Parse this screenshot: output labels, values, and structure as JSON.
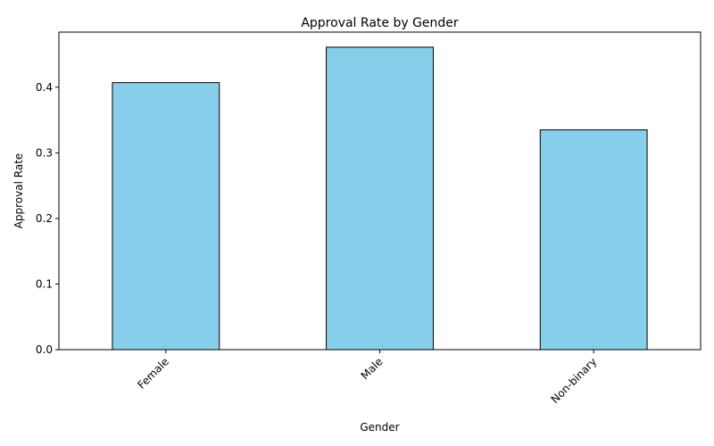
{
  "chart_data": {
    "type": "bar",
    "title": "Approval Rate by Gender",
    "xlabel": "Gender",
    "ylabel": "Approval Rate",
    "categories": [
      "Female",
      "Male",
      "Non-binary"
    ],
    "values": [
      0.407,
      0.461,
      0.335
    ],
    "ylim": [
      0,
      0.484
    ],
    "yticks": [
      0.0,
      0.1,
      0.2,
      0.3,
      0.4
    ],
    "ytick_labels": [
      "0.0",
      "0.1",
      "0.2",
      "0.3",
      "0.4"
    ],
    "grid": false,
    "bar_color": "#87ceeb",
    "edge_color": "#000000"
  }
}
